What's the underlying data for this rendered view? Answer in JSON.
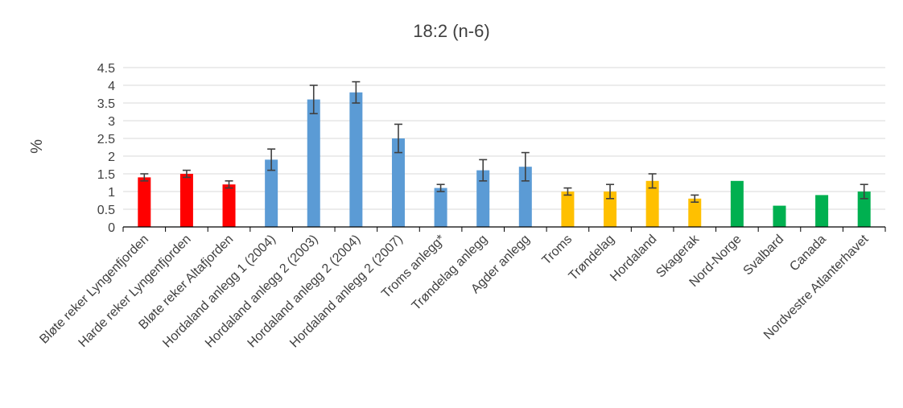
{
  "chart_data": {
    "type": "bar",
    "title": "18:2 (n-6)",
    "xlabel": "",
    "ylabel": "%",
    "ylim": [
      0,
      4.5
    ],
    "yticks": [
      "0",
      "0.5",
      "1",
      "1.5",
      "2",
      "2.5",
      "3",
      "3.5",
      "4",
      "4.5"
    ],
    "grid": true,
    "legend": "none",
    "categories": [
      "Bløte reker Lyngenfjorden",
      "Harde reker Lyngenfjorden",
      "Bløte reker Altafjorden",
      "Hordaland anlegg 1 (2004)",
      "Hordaland anlegg 2 (2003)",
      "Hordaland anlegg 2 (2004)",
      "Hordaland anlegg 2 (2007)",
      "Troms anlegg*",
      "Trøndelag anlegg",
      "Agder anlegg",
      "Troms",
      "Trøndelag",
      "Hordaland",
      "Skagerak",
      "Nord-Norge",
      "Svalbard",
      "Canada",
      "Nordvestre Atlanterhavet"
    ],
    "values": [
      1.4,
      1.5,
      1.2,
      1.9,
      3.6,
      3.8,
      2.5,
      1.1,
      1.6,
      1.7,
      1.0,
      1.0,
      1.3,
      0.8,
      1.3,
      0.6,
      0.9,
      1.0
    ],
    "errors": [
      0.1,
      0.1,
      0.1,
      0.3,
      0.4,
      0.3,
      0.4,
      0.1,
      0.3,
      0.4,
      0.1,
      0.2,
      0.2,
      0.1,
      null,
      null,
      null,
      0.2
    ],
    "colors": [
      "#ff0000",
      "#ff0000",
      "#ff0000",
      "#5b9bd5",
      "#5b9bd5",
      "#5b9bd5",
      "#5b9bd5",
      "#5b9bd5",
      "#5b9bd5",
      "#5b9bd5",
      "#ffc000",
      "#ffc000",
      "#ffc000",
      "#ffc000",
      "#00b050",
      "#00b050",
      "#00b050",
      "#00b050"
    ],
    "gridline_color": "#d9d9d9",
    "axis_color": "#000000",
    "errorbar_color": "#404040"
  }
}
